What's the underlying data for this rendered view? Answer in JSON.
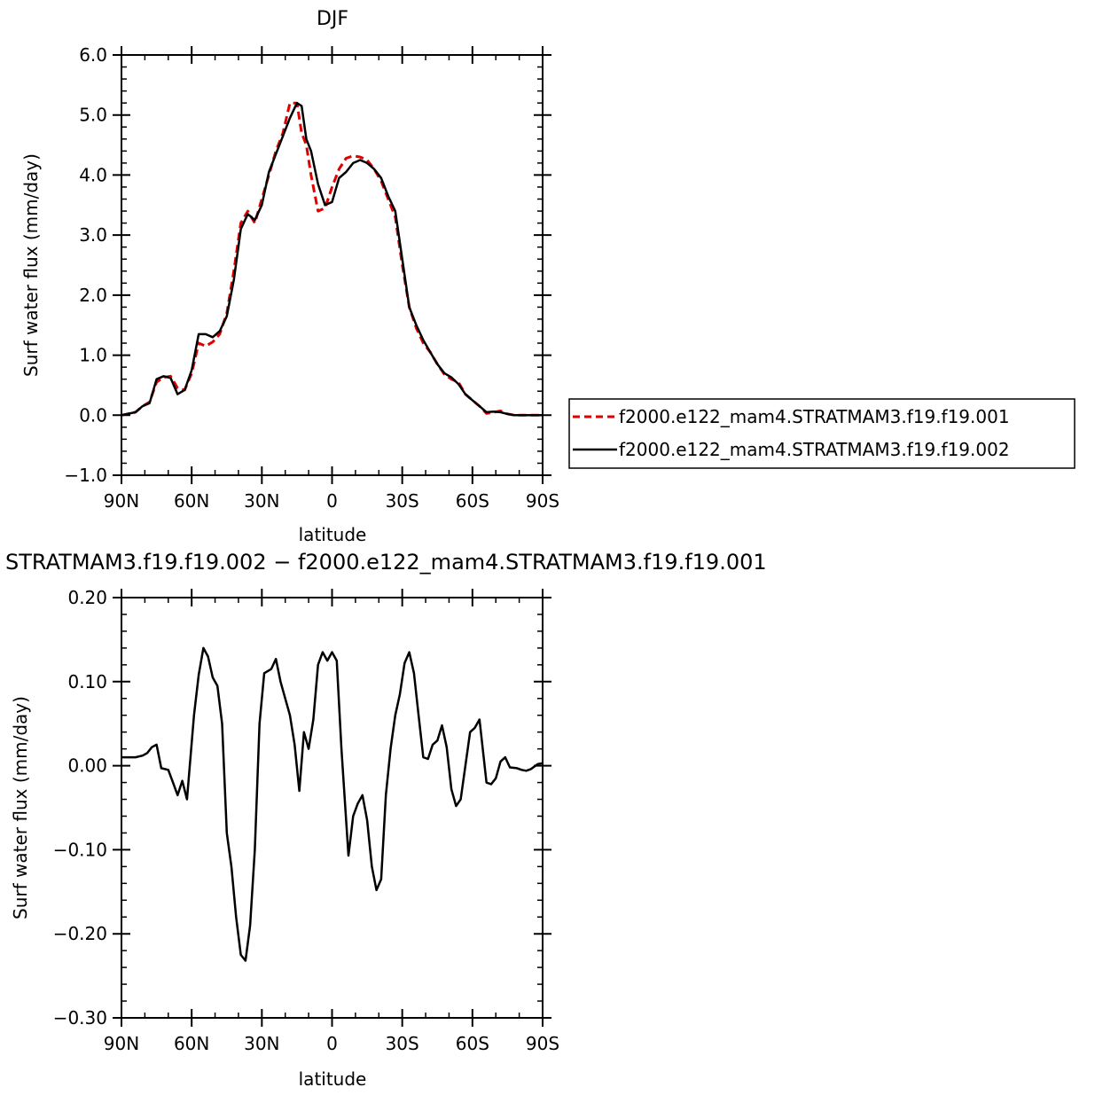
{
  "chart_data": [
    {
      "type": "line",
      "title": "DJF",
      "xlabel": "latitude",
      "ylabel": "Surf water flux (mm/day)",
      "xlim": [
        90,
        -90
      ],
      "ylim": [
        -1.0,
        6.0
      ],
      "xticks": [
        90,
        60,
        30,
        0,
        -30,
        -60,
        -90
      ],
      "xtick_labels": [
        "90N",
        "60N",
        "30N",
        "0",
        "30S",
        "60S",
        "90S"
      ],
      "yticks": [
        -1,
        0,
        1,
        2,
        3,
        4,
        5,
        6
      ],
      "ytick_labels": [
        "−1.0",
        "0.0",
        "1.0",
        "2.0",
        "3.0",
        "4.0",
        "5.0",
        "6.0"
      ],
      "grid": false,
      "legend_position": "right",
      "series": [
        {
          "name": "f2000.e122_mam4.STRATMAM3.f19.f19.001",
          "color": "#e00000",
          "dash": "dashed",
          "x": [
            90,
            84,
            81,
            78,
            75,
            72,
            69,
            66,
            63,
            60,
            57,
            54,
            51,
            48,
            45,
            42,
            39,
            36,
            33,
            30,
            27,
            24,
            21,
            18,
            15,
            13,
            11,
            9,
            6,
            3,
            0,
            -3,
            -6,
            -9,
            -12,
            -15,
            -18,
            -21,
            -24,
            -27,
            -30,
            -33,
            -36,
            -39,
            -42,
            -45,
            -48,
            -51,
            -54,
            -57,
            -60,
            -63,
            -66,
            -69,
            -72,
            -75,
            -78,
            -81,
            -84,
            -87,
            -90
          ],
          "y": [
            0.0,
            0.05,
            0.15,
            0.22,
            0.55,
            0.63,
            0.65,
            0.45,
            0.42,
            0.7,
            1.2,
            1.15,
            1.22,
            1.35,
            1.7,
            2.4,
            3.2,
            3.4,
            3.2,
            3.6,
            4.0,
            4.4,
            4.7,
            5.2,
            5.2,
            4.7,
            4.5,
            4.0,
            3.4,
            3.45,
            3.8,
            4.1,
            4.28,
            4.32,
            4.3,
            4.25,
            4.1,
            3.9,
            3.6,
            3.3,
            2.5,
            1.8,
            1.45,
            1.2,
            1.05,
            0.85,
            0.68,
            0.6,
            0.55,
            0.35,
            0.25,
            0.15,
            0.03,
            0.05,
            0.07,
            0.02,
            0.0,
            0.0,
            0.0,
            0.0,
            0.0
          ]
        },
        {
          "name": "f2000.e122_mam4.STRATMAM3.f19.f19.002",
          "color": "#000000",
          "dash": "solid",
          "x": [
            90,
            84,
            81,
            78,
            75,
            72,
            69,
            66,
            63,
            60,
            57,
            54,
            51,
            48,
            45,
            42,
            39,
            36,
            33,
            30,
            27,
            24,
            21,
            18,
            15,
            13,
            11,
            9,
            6,
            3,
            0,
            -3,
            -6,
            -9,
            -12,
            -15,
            -18,
            -21,
            -24,
            -27,
            -30,
            -33,
            -36,
            -39,
            -42,
            -45,
            -48,
            -51,
            -54,
            -57,
            -60,
            -63,
            -66,
            -69,
            -72,
            -75,
            -78,
            -81,
            -84,
            -87,
            -90
          ],
          "y": [
            0.0,
            0.05,
            0.15,
            0.2,
            0.6,
            0.65,
            0.62,
            0.35,
            0.42,
            0.75,
            1.35,
            1.35,
            1.3,
            1.4,
            1.65,
            2.25,
            3.1,
            3.35,
            3.25,
            3.5,
            4.05,
            4.35,
            4.65,
            4.95,
            5.2,
            5.15,
            4.6,
            4.4,
            3.85,
            3.5,
            3.55,
            3.95,
            4.05,
            4.2,
            4.25,
            4.2,
            4.1,
            3.95,
            3.65,
            3.4,
            2.6,
            1.8,
            1.5,
            1.25,
            1.05,
            0.85,
            0.7,
            0.63,
            0.52,
            0.35,
            0.25,
            0.15,
            0.05,
            0.06,
            0.05,
            0.02,
            0.0,
            0.0,
            0.0,
            0.0,
            0.0
          ]
        }
      ]
    },
    {
      "type": "line",
      "title": "STRATMAM3.f19.f19.002 − f2000.e122_mam4.STRATMAM3.f19.f19.001",
      "xlabel": "latitude",
      "ylabel": "Surf water flux (mm/day)",
      "xlim": [
        90,
        -90
      ],
      "ylim": [
        -0.3,
        0.2
      ],
      "xticks": [
        90,
        60,
        30,
        0,
        -30,
        -60,
        -90
      ],
      "xtick_labels": [
        "90N",
        "60N",
        "30N",
        "0",
        "30S",
        "60S",
        "90S"
      ],
      "yticks": [
        -0.3,
        -0.2,
        -0.1,
        0.0,
        0.1,
        0.2
      ],
      "ytick_labels": [
        "−0.30",
        "−0.20",
        "−0.10",
        "0.00",
        "0.10",
        "0.20"
      ],
      "grid": false,
      "series": [
        {
          "color": "#000000",
          "dash": "solid",
          "x": [
            90,
            86,
            84,
            81,
            79,
            77,
            75,
            73,
            70,
            68,
            66,
            64,
            62,
            59,
            57,
            55,
            53,
            51,
            49,
            47,
            45,
            43,
            41,
            39,
            37,
            35,
            33,
            31,
            29,
            26,
            24,
            22,
            20,
            18,
            16,
            14,
            12,
            10,
            8,
            6,
            4,
            2,
            0,
            -2,
            -4,
            -7,
            -9,
            -11,
            -13,
            -15,
            -17,
            -19,
            -21,
            -23,
            -25,
            -27,
            -29,
            -31,
            -33,
            -35,
            -37,
            -39,
            -41,
            -43,
            -45,
            -47,
            -49,
            -51,
            -53,
            -55,
            -57,
            -59,
            -61,
            -63,
            -66,
            -68,
            -70,
            -72,
            -74,
            -76,
            -79,
            -81,
            -83,
            -85,
            -88,
            -90
          ],
          "y": [
            0.01,
            0.01,
            0.01,
            0.012,
            0.015,
            0.022,
            0.025,
            -0.003,
            -0.005,
            -0.02,
            -0.035,
            -0.018,
            -0.04,
            0.06,
            0.108,
            0.14,
            0.13,
            0.105,
            0.095,
            0.05,
            -0.08,
            -0.12,
            -0.18,
            -0.225,
            -0.232,
            -0.19,
            -0.1,
            0.05,
            0.11,
            0.115,
            0.127,
            0.1,
            0.08,
            0.06,
            0.025,
            -0.03,
            0.04,
            0.02,
            0.055,
            0.12,
            0.135,
            0.125,
            0.135,
            0.125,
            0.02,
            -0.107,
            -0.06,
            -0.045,
            -0.035,
            -0.065,
            -0.12,
            -0.148,
            -0.135,
            -0.035,
            0.02,
            0.06,
            0.085,
            0.122,
            0.135,
            0.11,
            0.06,
            0.01,
            0.008,
            0.025,
            0.03,
            0.048,
            0.022,
            -0.028,
            -0.048,
            -0.04,
            0.0,
            0.04,
            0.045,
            0.055,
            -0.02,
            -0.022,
            -0.015,
            0.005,
            0.01,
            -0.002,
            -0.003,
            -0.005,
            -0.006,
            -0.004,
            0.002,
            0.003
          ]
        }
      ]
    }
  ]
}
